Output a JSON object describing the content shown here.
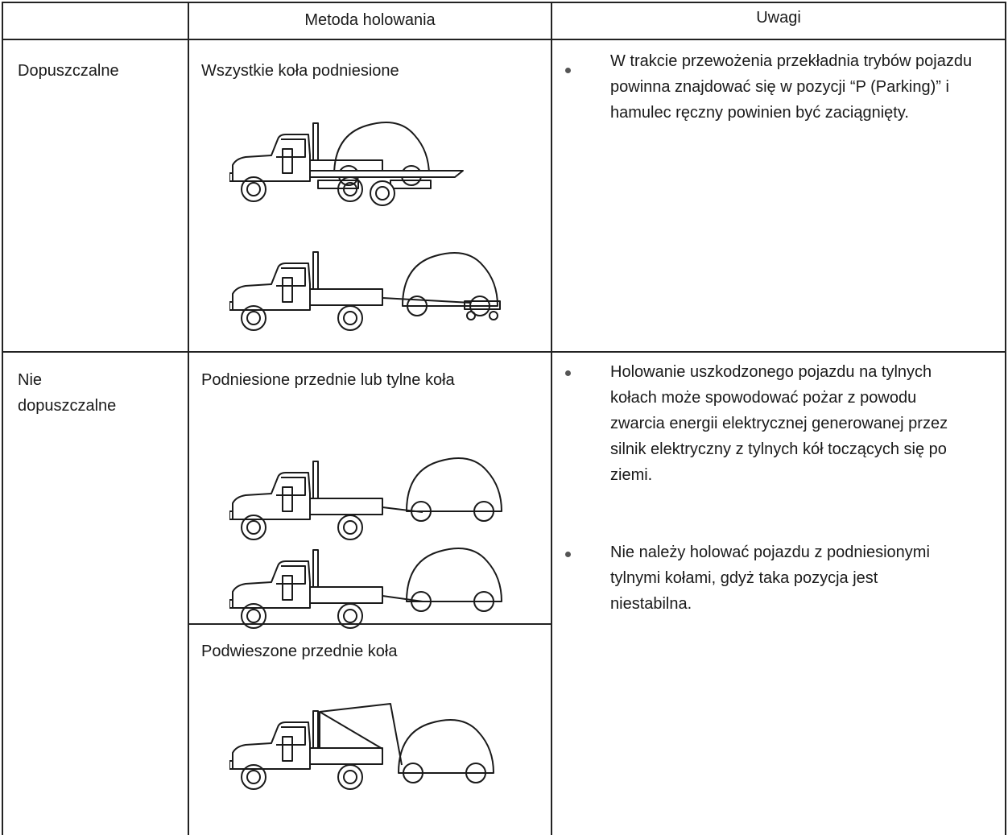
{
  "table": {
    "header": [
      "Metoda holowania",
      "Uwagi"
    ],
    "rows": [
      {
        "status": "Dopuszczalne",
        "methods": [
          "Wszystkie koła podniesione"
        ],
        "notes": [
          "W trakcie przewożenia przekładnia trybów pojazdu powinna znajdować się w pozycji “P (Parking)” i hamulec ręczny powinien być zaciągnięty."
        ]
      },
      {
        "status": "Nie dopuszczalne",
        "methods": [
          "Podniesione przednie lub tylne koła",
          "Podwieszone przednie koła"
        ],
        "notes": [
          "Holowanie uszkodzonego pojazdu na tylnych kołach może spowodować pożar z powodu zwarcia energii elektrycznej generowanej przez silnik elektryczny z tylnych kół toczących się po ziemi.",
          "Nie należy holować pojazdu z podniesionymi tylnymi kołami, gdyż taka pozycja jest niestabilna."
        ]
      }
    ]
  }
}
